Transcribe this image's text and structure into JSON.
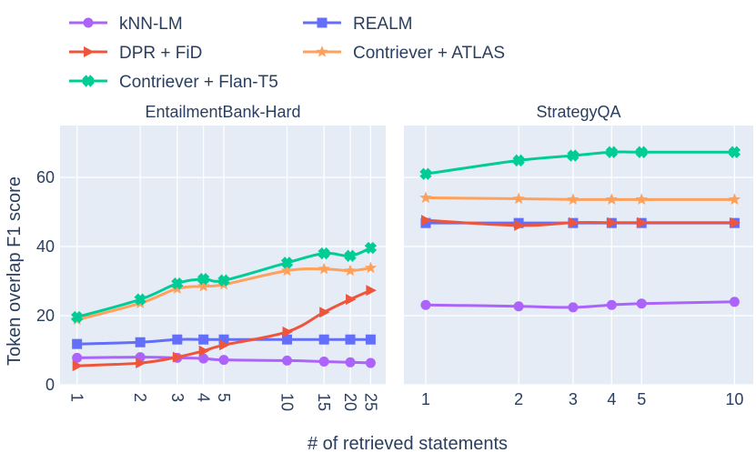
{
  "chart_data": {
    "type": "line",
    "xlabel": "# of retrieved statements",
    "ylabel": "Token overlap F1 score",
    "ylim": [
      0,
      75
    ],
    "yticks": [
      0,
      20,
      40,
      60
    ],
    "xscale": "log",
    "legend": {
      "placement": "top-left",
      "entries": [
        "kNN-LM",
        "REALM",
        "DPR + FiD",
        "Contriever + ATLAS",
        "Contriever + Flan-T5"
      ]
    },
    "series_styles": [
      {
        "name": "kNN-LM",
        "color": "#ab63fa",
        "marker": "circle"
      },
      {
        "name": "REALM",
        "color": "#636efa",
        "marker": "square"
      },
      {
        "name": "DPR + FiD",
        "color": "#ef553b",
        "marker": "triangle-right"
      },
      {
        "name": "Contriever + ATLAS",
        "color": "#ffa15a",
        "marker": "star"
      },
      {
        "name": "Contriever + Flan-T5",
        "color": "#00cc96",
        "marker": "x"
      }
    ],
    "panels": [
      {
        "title": "EntailmentBank-Hard",
        "x": [
          1,
          2,
          3,
          4,
          5,
          10,
          15,
          20,
          25
        ],
        "xtick_labels": [
          "1",
          "2",
          "3",
          "4",
          "5",
          "10",
          "15",
          "20",
          "25"
        ],
        "series": [
          {
            "name": "kNN-LM",
            "values": [
              7.8,
              8.0,
              7.8,
              7.6,
              7.2,
              7.0,
              6.7,
              6.5,
              6.3
            ]
          },
          {
            "name": "REALM",
            "values": [
              11.8,
              12.3,
              13.1,
              13.1,
              13.1,
              13.1,
              13.1,
              13.1,
              13.1
            ]
          },
          {
            "name": "DPR + FiD",
            "values": [
              5.5,
              6.3,
              8.0,
              9.8,
              11.5,
              15.3,
              21.0,
              24.7,
              27.3
            ]
          },
          {
            "name": "Contriever + ATLAS",
            "values": [
              18.8,
              23.6,
              27.8,
              28.5,
              29.0,
              33.0,
              33.5,
              33.0,
              33.8
            ]
          },
          {
            "name": "Contriever + Flan-T5",
            "values": [
              19.6,
              24.7,
              29.3,
              30.6,
              30.2,
              35.3,
              38.0,
              37.3,
              39.6
            ]
          }
        ]
      },
      {
        "title": "StrategyQA",
        "x": [
          1,
          2,
          3,
          4,
          5,
          10
        ],
        "xtick_labels": [
          "1",
          "2",
          "3",
          "4",
          "5",
          "10"
        ],
        "series": [
          {
            "name": "kNN-LM",
            "values": [
              23.1,
              22.7,
              22.4,
              23.1,
              23.5,
              24.0
            ]
          },
          {
            "name": "REALM",
            "values": [
              46.8,
              46.8,
              46.8,
              46.8,
              46.8,
              46.8
            ]
          },
          {
            "name": "DPR + FiD",
            "values": [
              47.6,
              46.1,
              46.9,
              46.9,
              46.9,
              46.9
            ]
          },
          {
            "name": "Contriever + ATLAS",
            "values": [
              54.1,
              53.8,
              53.6,
              53.6,
              53.6,
              53.6
            ]
          },
          {
            "name": "Contriever + Flan-T5",
            "values": [
              61.0,
              64.9,
              66.3,
              67.3,
              67.3,
              67.3
            ]
          }
        ]
      }
    ]
  }
}
